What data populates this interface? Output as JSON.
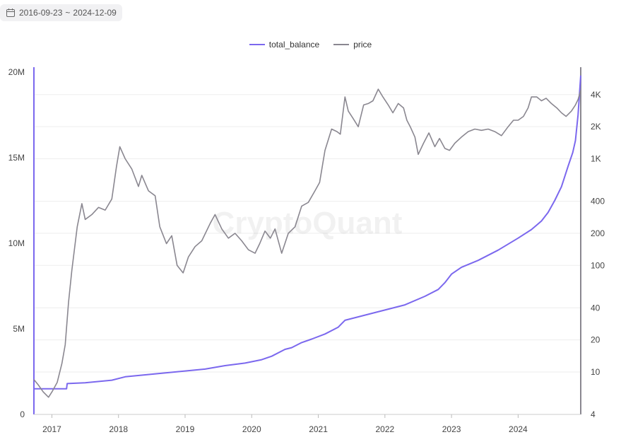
{
  "date_range": {
    "start": "2016-09-23",
    "end": "2024-12-09",
    "separator": "~"
  },
  "watermark": "CryptoQuant",
  "colors": {
    "balance": "#7b68ee",
    "price": "#8a8790",
    "grid": "#eeeeee",
    "axis": "#8a8790"
  },
  "chart_data": {
    "type": "line",
    "legend": [
      "total_balance",
      "price"
    ],
    "x_ticks": [
      "2017",
      "2018",
      "2019",
      "2020",
      "2021",
      "2022",
      "2023",
      "2024"
    ],
    "x_range": [
      2016.73,
      2024.94
    ],
    "left_axis": {
      "ticks": [
        "0",
        "5M",
        "10M",
        "15M",
        "20M"
      ],
      "values": [
        0,
        5000000,
        10000000,
        15000000,
        20000000
      ],
      "ylim": [
        0,
        20000000
      ]
    },
    "right_axis": {
      "scale": "log",
      "ticks": [
        "4",
        "10",
        "20",
        "40",
        "100",
        "200",
        "400",
        "1K",
        "2K",
        "4K"
      ],
      "values": [
        4,
        10,
        20,
        40,
        100,
        200,
        400,
        1000,
        2000,
        4000
      ],
      "ylim": [
        4,
        6500
      ]
    },
    "series": [
      {
        "name": "total_balance",
        "axis": "left",
        "x": [
          2016.73,
          2016.9,
          2017.05,
          2017.22,
          2017.23,
          2017.5,
          2017.9,
          2018.1,
          2018.5,
          2018.9,
          2019.3,
          2019.6,
          2019.9,
          2020.15,
          2020.3,
          2020.5,
          2020.6,
          2020.75,
          2020.9,
          2021.1,
          2021.3,
          2021.4,
          2021.7,
          2022.0,
          2022.3,
          2022.6,
          2022.8,
          2022.9,
          2023.0,
          2023.15,
          2023.4,
          2023.7,
          2024.0,
          2024.2,
          2024.35,
          2024.45,
          2024.55,
          2024.65,
          2024.75,
          2024.82,
          2024.86,
          2024.9,
          2024.94
        ],
        "values": [
          1500000,
          1500000,
          1500000,
          1500000,
          1800000,
          1850000,
          2000000,
          2200000,
          2350000,
          2500000,
          2650000,
          2850000,
          3000000,
          3200000,
          3400000,
          3800000,
          3900000,
          4200000,
          4400000,
          4700000,
          5100000,
          5500000,
          5800000,
          6100000,
          6400000,
          6900000,
          7300000,
          7700000,
          8200000,
          8600000,
          9000000,
          9600000,
          10300000,
          10800000,
          11300000,
          11800000,
          12500000,
          13300000,
          14500000,
          15300000,
          16000000,
          17500000,
          19800000
        ]
      },
      {
        "name": "price",
        "axis": "right",
        "x": [
          2016.73,
          2016.8,
          2016.87,
          2016.95,
          2017.0,
          2017.08,
          2017.15,
          2017.2,
          2017.25,
          2017.3,
          2017.38,
          2017.45,
          2017.5,
          2017.6,
          2017.7,
          2017.8,
          2017.9,
          2017.97,
          2018.02,
          2018.1,
          2018.2,
          2018.3,
          2018.35,
          2018.45,
          2018.55,
          2018.62,
          2018.72,
          2018.8,
          2018.88,
          2018.97,
          2019.05,
          2019.15,
          2019.25,
          2019.38,
          2019.45,
          2019.55,
          2019.65,
          2019.75,
          2019.85,
          2019.95,
          2020.05,
          2020.12,
          2020.2,
          2020.28,
          2020.35,
          2020.45,
          2020.55,
          2020.65,
          2020.75,
          2020.85,
          2020.95,
          2021.02,
          2021.1,
          2021.2,
          2021.28,
          2021.33,
          2021.4,
          2021.45,
          2021.52,
          2021.6,
          2021.68,
          2021.75,
          2021.82,
          2021.9,
          2021.97,
          2022.05,
          2022.12,
          2022.2,
          2022.28,
          2022.33,
          2022.38,
          2022.45,
          2022.5,
          2022.58,
          2022.66,
          2022.75,
          2022.82,
          2022.9,
          2022.97,
          2023.05,
          2023.15,
          2023.25,
          2023.35,
          2023.45,
          2023.55,
          2023.65,
          2023.75,
          2023.85,
          2023.93,
          2024.0,
          2024.08,
          2024.15,
          2024.2,
          2024.28,
          2024.35,
          2024.42,
          2024.5,
          2024.58,
          2024.65,
          2024.72,
          2024.8,
          2024.86,
          2024.9,
          2024.94
        ],
        "values": [
          8.5,
          7.5,
          6.5,
          5.8,
          6.5,
          8,
          12,
          18,
          45,
          90,
          230,
          380,
          270,
          300,
          350,
          330,
          420,
          850,
          1300,
          1000,
          800,
          550,
          700,
          500,
          450,
          230,
          160,
          190,
          100,
          85,
          120,
          150,
          170,
          250,
          300,
          220,
          180,
          200,
          170,
          140,
          130,
          160,
          210,
          180,
          220,
          130,
          200,
          230,
          360,
          390,
          500,
          600,
          1200,
          1900,
          1800,
          1700,
          3800,
          2800,
          2400,
          2000,
          3200,
          3300,
          3500,
          4500,
          3800,
          3200,
          2700,
          3300,
          3000,
          2300,
          2000,
          1600,
          1100,
          1400,
          1750,
          1300,
          1550,
          1250,
          1200,
          1400,
          1600,
          1800,
          1900,
          1850,
          1900,
          1800,
          1650,
          2000,
          2300,
          2300,
          2500,
          3000,
          3800,
          3800,
          3500,
          3700,
          3300,
          3000,
          2700,
          2500,
          2800,
          3200,
          3600,
          4400
        ]
      }
    ]
  }
}
